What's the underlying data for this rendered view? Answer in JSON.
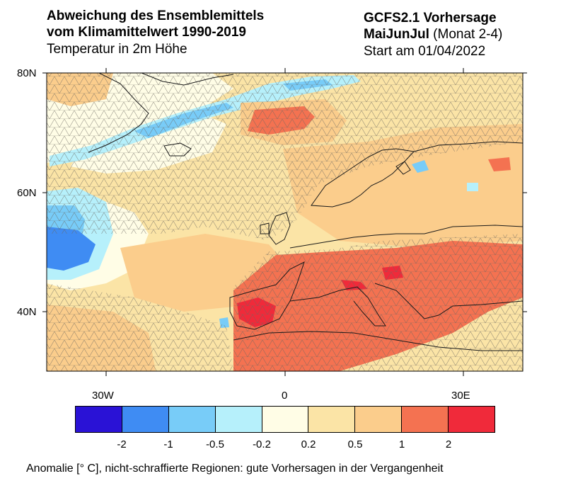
{
  "header": {
    "left_line1": "Abweichung des Ensemblemittels",
    "left_line2": "vom Klimamittelwert 1990-2019",
    "left_line3": "Temperatur in 2m Höhe",
    "right_line1": "GCFS2.1 Vorhersage",
    "right_line2_bold": "MaiJunJul",
    "right_line2_rest": " (Monat 2-4)",
    "right_line3": "Start am 01/04/2022"
  },
  "map": {
    "lat_labels": [
      "80N",
      "60N",
      "40N"
    ],
    "lon_labels": [
      "30W",
      "0",
      "30E"
    ],
    "hatching": "hatched regions = poor past forecast skill"
  },
  "colorbar": {
    "colors": [
      "#2a12d6",
      "#3f8cf3",
      "#78ccf8",
      "#b6f0fb",
      "#fffde6",
      "#fbe4a6",
      "#fbcd8c",
      "#f47251",
      "#f02a3a"
    ],
    "ticks": [
      "-2",
      "-1",
      "-0.5",
      "-0.2",
      "0.2",
      "0.5",
      "1",
      "2"
    ]
  },
  "footer": {
    "caption": "Anomalie [° C], nicht-schraffierte Regionen: gute Vorhersagen in der Vergangenheit"
  }
}
